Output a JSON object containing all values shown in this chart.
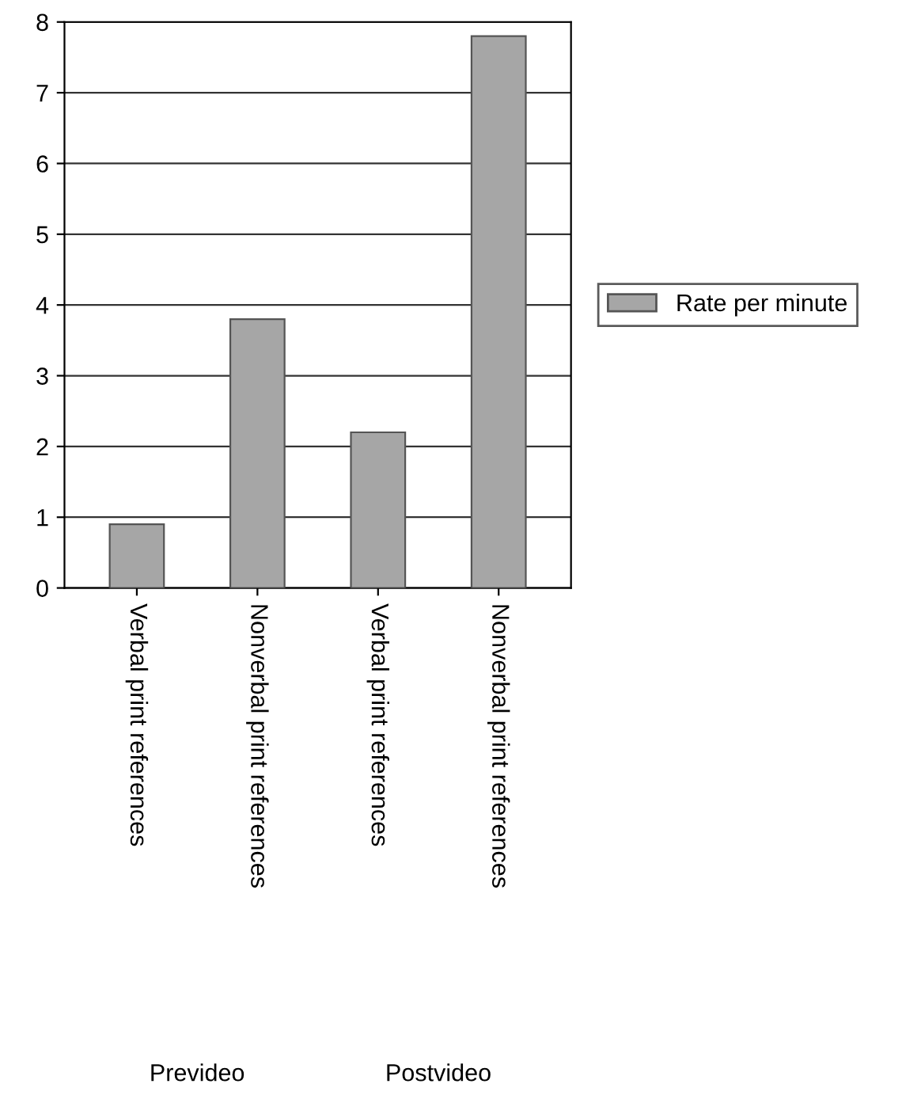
{
  "chart_data": {
    "type": "bar",
    "categories": [
      "Verbal print references",
      "Nonverbal print references",
      "Verbal print references",
      "Nonverbal print references"
    ],
    "series": [
      {
        "name": "Rate per minute",
        "color": "#a6a6a6",
        "values": [
          0.9,
          3.8,
          2.2,
          7.8
        ]
      }
    ],
    "ylim": [
      0,
      8
    ],
    "yticks": [
      0,
      1,
      2,
      3,
      4,
      5,
      6,
      7,
      8
    ],
    "grid": "y",
    "legend": "right",
    "annotations": [
      "Prevideo",
      "Postvideo"
    ]
  }
}
